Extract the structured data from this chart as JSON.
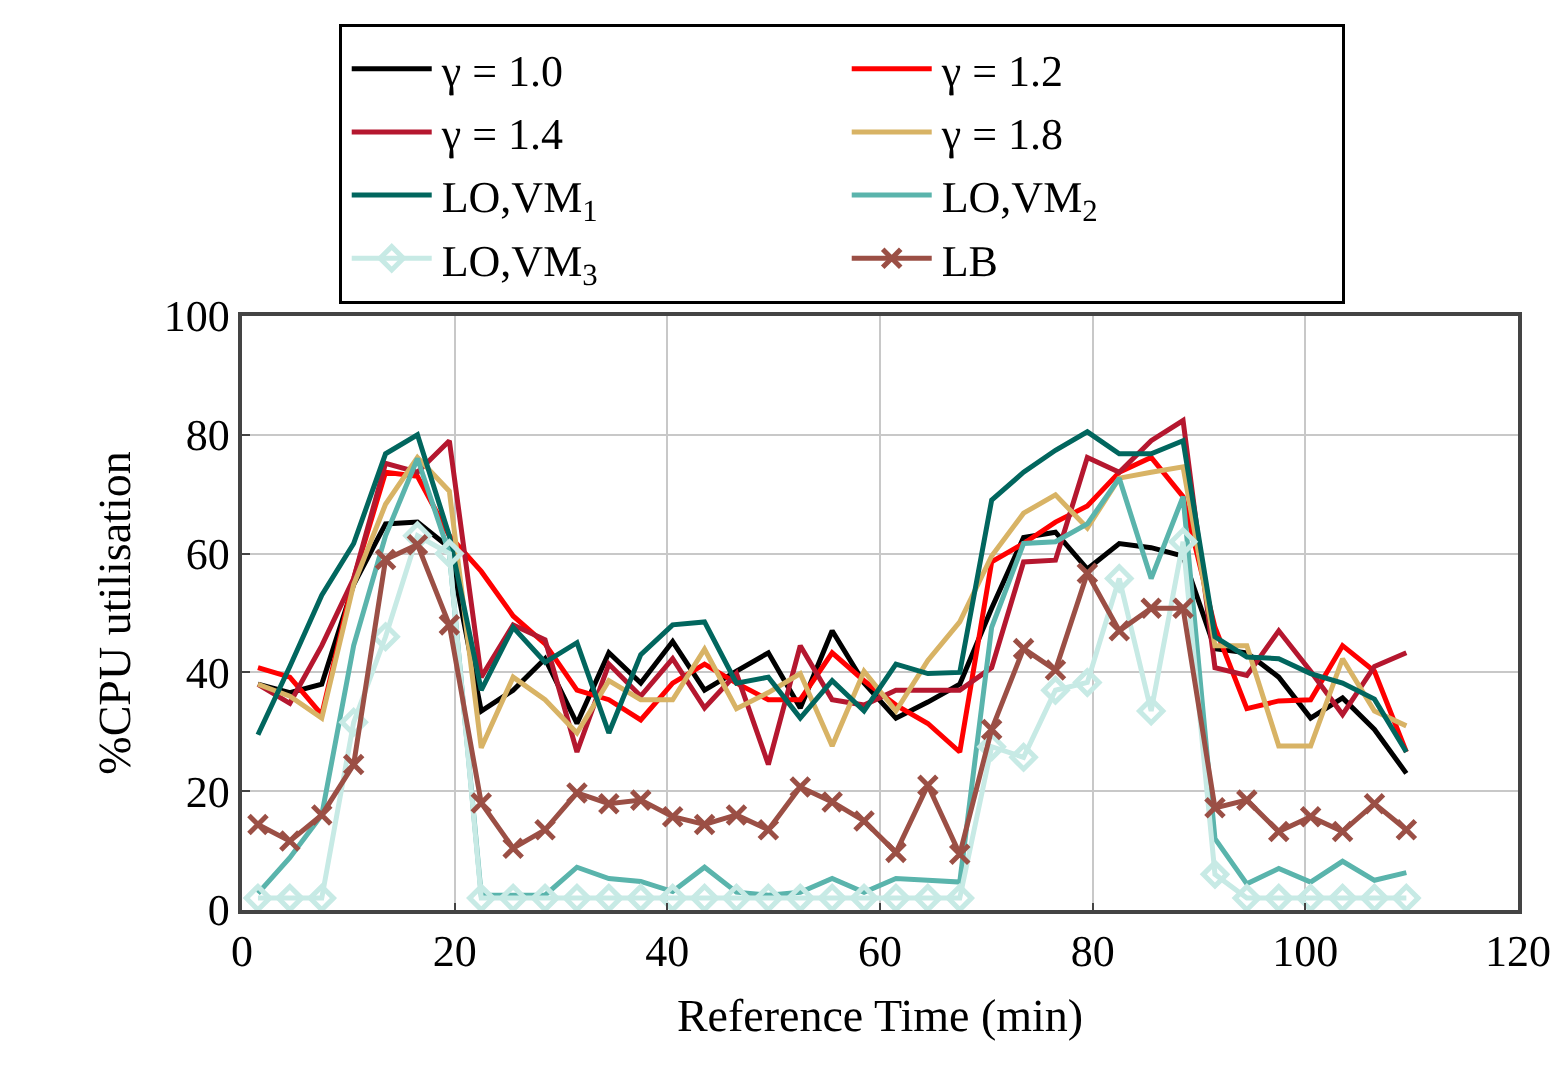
{
  "chart_data": {
    "type": "line",
    "xlabel": "Reference Time (min)",
    "ylabel": "%CPU utilisation",
    "x": [
      1.5,
      4.5,
      7.5,
      10.5,
      13.5,
      16.5,
      19.5,
      22.5,
      25.5,
      28.5,
      31.5,
      34.5,
      37.5,
      40.5,
      43.5,
      46.5,
      49.5,
      52.5,
      55.5,
      58.5,
      61.5,
      64.5,
      67.5,
      70.5,
      73.5,
      76.5,
      79.5,
      82.5,
      85.5,
      88.5,
      91.5,
      94.5,
      97.5,
      100.5,
      103.5,
      106.5,
      109.5
    ],
    "xlim": [
      0,
      120
    ],
    "xticks": [
      0,
      20,
      40,
      60,
      80,
      100,
      120
    ],
    "ylim": [
      0,
      100
    ],
    "yticks": [
      0,
      20,
      40,
      60,
      80,
      100
    ],
    "grid": true,
    "legend": "top",
    "line_style": "solid",
    "marker": "none",
    "series": [
      {
        "name": "γ = 1.0",
        "color": "#000000",
        "values": [
          38,
          36.6,
          38,
          54.8,
          65,
          65.3,
          61,
          33.5,
          37,
          42.3,
          31.4,
          43.3,
          38.2,
          45.2,
          37,
          40.2,
          43.3,
          34,
          47,
          38.2,
          32.3,
          35,
          38,
          50.8,
          62.7,
          63.6,
          57.4,
          61.7,
          61,
          59.6,
          44,
          43.3,
          39.2,
          32.3,
          35.7,
          30.4,
          23
        ]
      },
      {
        "name": "γ = 1.2",
        "color": "#ff0000",
        "values": [
          40.8,
          39.2,
          32.9,
          55.8,
          73.7,
          73,
          63,
          57,
          49.5,
          44.8,
          37,
          35.4,
          32,
          38.2,
          41.4,
          38.2,
          35.4,
          35.4,
          43.3,
          38.6,
          34.5,
          31.4,
          26.6,
          58.6,
          61.7,
          65.3,
          68,
          73.7,
          76.2,
          69.6,
          47.6,
          33.9,
          35.2,
          35.4,
          44.5,
          40.2,
          26.6
        ]
      },
      {
        "name": "γ = 1.4",
        "color": "#b5172f",
        "values": [
          38,
          34.8,
          44.5,
          55.8,
          75.2,
          73.7,
          79,
          39.2,
          48,
          45.5,
          26.6,
          41.4,
          36,
          42.3,
          34,
          39.8,
          24.5,
          44.5,
          35.4,
          34.5,
          37,
          37,
          37,
          40.8,
          58.6,
          58.9,
          76.2,
          73.7,
          79,
          82.4,
          40.8,
          39.5,
          47,
          40.2,
          32.9,
          41,
          43.3
        ]
      },
      {
        "name": "γ = 1.8",
        "color": "#d8b365",
        "values": [
          38,
          36,
          32.3,
          54.8,
          68.3,
          76.2,
          70.5,
          27.3,
          39.2,
          35.4,
          29.8,
          38.6,
          35.4,
          35.4,
          43.9,
          33.9,
          36.6,
          39.8,
          27.6,
          40.2,
          33.5,
          42,
          48.5,
          59.6,
          66.8,
          69.9,
          64.3,
          72.7,
          73.7,
          74.6,
          44.5,
          44.5,
          27.6,
          27.6,
          42.3,
          33.5,
          31
        ]
      },
      {
        "name": "LO,VM$_{1}$",
        "color": "#01665e",
        "values": [
          29.5,
          41,
          53,
          61.7,
          76.8,
          80,
          63,
          37,
          47.6,
          41.7,
          45,
          29.8,
          43,
          48,
          48.5,
          38.2,
          39.2,
          32.3,
          38.6,
          33.5,
          41.4,
          39.8,
          40,
          69,
          73.7,
          77.4,
          80.5,
          76.8,
          76.8,
          79,
          46,
          42.6,
          42.3,
          39.8,
          38.2,
          35.5,
          26.6
        ]
      },
      {
        "name": "LO,VM$_{2}$",
        "color": "#5ab4ac",
        "values": [
          2.8,
          8.8,
          16,
          44.5,
          63,
          76,
          60,
          2.5,
          2.5,
          2.5,
          7.2,
          5.3,
          4.8,
          3.1,
          7.2,
          3,
          2.5,
          3,
          5.3,
          3,
          5.3,
          5,
          4.7,
          47.6,
          61.7,
          62,
          65,
          72.7,
          55.8,
          69.6,
          12,
          4.4,
          7,
          4.7,
          8.2,
          5,
          6.3
        ]
      },
      {
        "name": "LO,VM$_{3}$",
        "color": "#c7eae5",
        "marker": "diamond",
        "values": [
          2,
          2,
          2,
          31.6,
          46,
          63,
          60,
          2,
          2,
          2,
          2,
          2,
          2,
          2,
          2,
          2,
          2,
          2,
          2,
          2,
          2,
          2,
          2,
          27.5,
          25.7,
          37,
          38.3,
          55.8,
          33.5,
          62,
          6,
          2,
          2,
          2,
          2,
          2,
          2
        ]
      },
      {
        "name": "LB",
        "color": "#9b4f45",
        "marker": "cross",
        "values": [
          14.4,
          11.6,
          16,
          24.5,
          59,
          61.5,
          48,
          18,
          10.4,
          13.5,
          19.7,
          17.9,
          18.5,
          15.7,
          14.4,
          16,
          13.5,
          20.7,
          18.2,
          15,
          9.7,
          21,
          9.4,
          30.4,
          44,
          40.4,
          56.7,
          47,
          50.8,
          50.8,
          17.2,
          18.5,
          13.2,
          15.7,
          13.2,
          17.9,
          13.5
        ]
      }
    ]
  }
}
